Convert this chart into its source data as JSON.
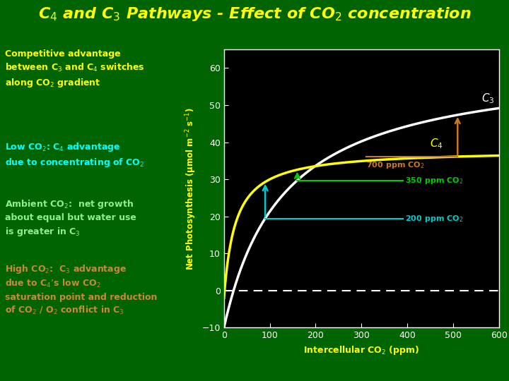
{
  "title": "C$_4$ and C$_3$ Pathways - Effect of CO$_2$ concentration",
  "title_color": "#FFFF00",
  "title_fontsize": 16,
  "bg_color": "#006400",
  "plot_bg_color": "#000000",
  "xlabel": "Intercellular CO$_2$ (ppm)",
  "ylabel": "Net Photosynthesis (μmol m$^{-2}$ s$^{-1}$)",
  "xlim": [
    0,
    600
  ],
  "ylim": [
    -10,
    65
  ],
  "xticks": [
    0,
    100,
    200,
    300,
    400,
    500,
    600
  ],
  "yticks": [
    -10,
    0,
    10,
    20,
    30,
    40,
    50,
    60
  ],
  "c3_color": "#FFFFFF",
  "c4_color": "#FFFF00",
  "arrow_700_color": "#CC7722",
  "arrow_350_color": "#00CC00",
  "arrow_200_color": "#00CCCC",
  "label_700": "700 ppm CO$_2$",
  "label_350": "350 ppm CO$_2$",
  "label_200": "200 ppm CO$_2$",
  "text_block1": "Competitive advantage\nbetween C$_3$ and C$_4$ switches\nalong CO$_2$ gradient",
  "text_block1_color": "#FFFF00",
  "text_block2": "Low CO$_2$: C$_4$ advantage\ndue to concentrating of CO$_2$",
  "text_block2_color": "#00FFFF",
  "text_block3": "Ambient CO$_2$:  net growth\nabout equal but water use\nis greater in C$_3$",
  "text_block3_color": "#90EE90",
  "text_block4": "High CO$_2$:  C$_3$ advantage\ndue to C$_4$’s low CO$_2$\nsaturation point and reduction\nof CO$_2$ / O$_2$ conflict in C$_3$",
  "text_block4_color": "#CC8833",
  "c3_Amax": 72,
  "c3_Km": 130,
  "c3_Rd": 10,
  "c4_Amax": 40,
  "c4_Km": 25,
  "c4_Rd": 2
}
